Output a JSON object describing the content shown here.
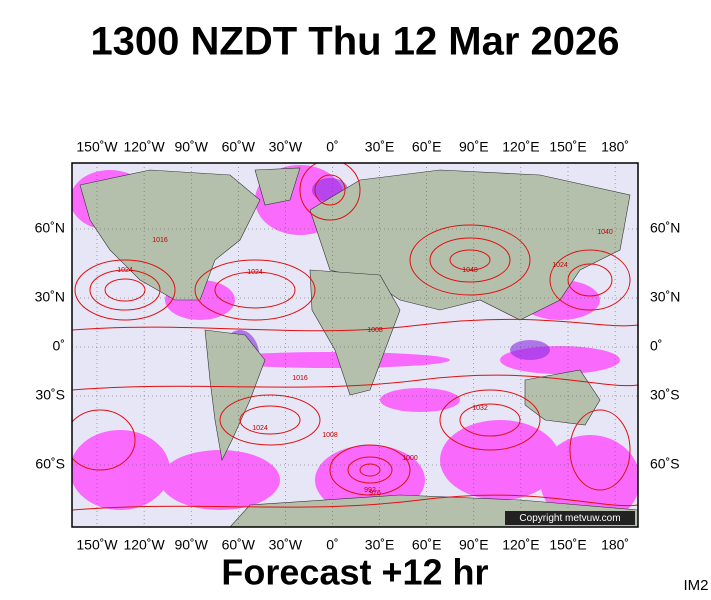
{
  "header": {
    "title": "1300 NZDT Thu 12 Mar 2026"
  },
  "map": {
    "lon_labels": [
      "150˚W",
      "120˚W",
      "90˚W",
      "60˚W",
      "30˚W",
      "0˚",
      "30˚E",
      "60˚E",
      "90˚E",
      "120˚E",
      "150˚E",
      "180˚"
    ],
    "lat_labels": [
      "60˚N",
      "30˚N",
      "0˚",
      "30˚S",
      "60˚S"
    ],
    "isobar_labels": [
      "1024",
      "1016",
      "1024",
      "1048",
      "1040",
      "1008",
      "1016",
      "1024",
      "1032",
      "1008",
      "1000",
      "992",
      "976",
      "1024"
    ],
    "copyright": "Copyright metvuw.com"
  },
  "footer": {
    "forecast": "Forecast +12 hr",
    "id": "IM2"
  }
}
